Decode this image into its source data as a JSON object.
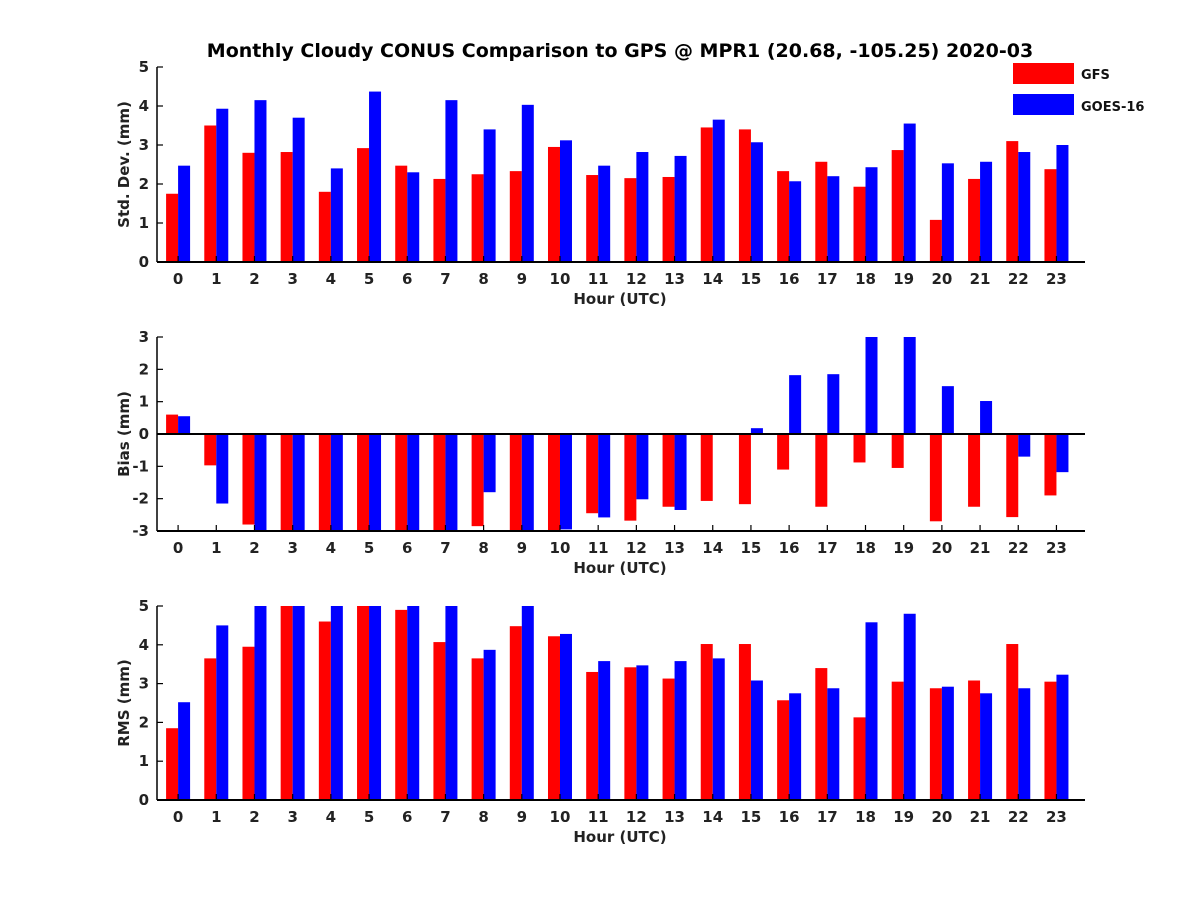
{
  "title": "Monthly Cloudy CONUS Comparison to GPS @ MPR1 (20.68, -105.25) 2020-03",
  "legend": {
    "placement": "top-right",
    "entries": [
      {
        "name": "GFS",
        "color": "#ff0000"
      },
      {
        "name": "GOES-16",
        "color": "#0000ff"
      }
    ]
  },
  "chart_data": [
    {
      "type": "bar",
      "ylabel": "Std. Dev. (mm)",
      "xlabel": "Hour (UTC)",
      "ylim": [
        0,
        5
      ],
      "yticks": [
        0,
        1,
        2,
        3,
        4,
        5
      ],
      "categories": [
        "0",
        "1",
        "2",
        "3",
        "4",
        "5",
        "6",
        "7",
        "8",
        "9",
        "10",
        "11",
        "12",
        "13",
        "14",
        "15",
        "16",
        "17",
        "18",
        "19",
        "20",
        "21",
        "22",
        "23"
      ],
      "series": [
        {
          "name": "GFS",
          "color": "#ff0000",
          "values": [
            1.75,
            3.5,
            2.8,
            2.82,
            1.8,
            2.92,
            2.47,
            2.13,
            2.25,
            2.33,
            2.95,
            2.23,
            2.15,
            2.18,
            3.45,
            3.4,
            2.33,
            2.57,
            1.93,
            2.87,
            1.08,
            2.13,
            3.1,
            2.38
          ]
        },
        {
          "name": "GOES-16",
          "color": "#0000ff",
          "values": [
            2.47,
            3.93,
            4.15,
            3.7,
            2.4,
            4.37,
            2.3,
            4.15,
            3.4,
            4.03,
            3.12,
            2.47,
            2.82,
            2.72,
            3.65,
            3.07,
            2.07,
            2.2,
            2.43,
            3.55,
            2.53,
            2.57,
            2.82,
            3.0
          ]
        }
      ]
    },
    {
      "type": "bar",
      "ylabel": "Bias (mm)",
      "xlabel": "Hour (UTC)",
      "ylim": [
        -3,
        3
      ],
      "yticks": [
        -3,
        -2,
        -1,
        0,
        1,
        2,
        3
      ],
      "categories": [
        "0",
        "1",
        "2",
        "3",
        "4",
        "5",
        "6",
        "7",
        "8",
        "9",
        "10",
        "11",
        "12",
        "13",
        "14",
        "15",
        "16",
        "17",
        "18",
        "19",
        "20",
        "21",
        "22",
        "23"
      ],
      "series": [
        {
          "name": "GFS",
          "color": "#ff0000",
          "values": [
            0.6,
            -0.97,
            -2.8,
            -3.0,
            -3.0,
            -3.0,
            -3.0,
            -3.0,
            -2.85,
            -3.0,
            -3.0,
            -2.45,
            -2.68,
            -2.25,
            -2.07,
            -2.17,
            -1.1,
            -2.25,
            -0.88,
            -1.05,
            -2.7,
            -2.25,
            -2.57,
            -1.9
          ]
        },
        {
          "name": "GOES-16",
          "color": "#0000ff",
          "values": [
            0.55,
            -2.15,
            -3.0,
            -3.0,
            -3.0,
            -3.0,
            -3.0,
            -3.0,
            -1.8,
            -3.0,
            -2.95,
            -2.58,
            -2.02,
            -2.35,
            -0.03,
            0.18,
            1.82,
            1.85,
            3.0,
            3.0,
            1.48,
            1.02,
            -0.7,
            -1.18
          ]
        }
      ]
    },
    {
      "type": "bar",
      "ylabel": "RMS (mm)",
      "xlabel": "Hour (UTC)",
      "ylim": [
        0,
        5
      ],
      "yticks": [
        0,
        1,
        2,
        3,
        4,
        5
      ],
      "categories": [
        "0",
        "1",
        "2",
        "3",
        "4",
        "5",
        "6",
        "7",
        "8",
        "9",
        "10",
        "11",
        "12",
        "13",
        "14",
        "15",
        "16",
        "17",
        "18",
        "19",
        "20",
        "21",
        "22",
        "23"
      ],
      "series": [
        {
          "name": "GFS",
          "color": "#ff0000",
          "values": [
            1.85,
            3.65,
            3.95,
            5.0,
            4.6,
            5.0,
            4.9,
            4.07,
            3.65,
            4.48,
            4.22,
            3.3,
            3.42,
            3.13,
            4.02,
            4.02,
            2.57,
            3.4,
            2.13,
            3.05,
            2.88,
            3.08,
            4.02,
            3.05
          ]
        },
        {
          "name": "GOES-16",
          "color": "#0000ff",
          "values": [
            2.52,
            4.5,
            5.0,
            5.0,
            5.0,
            5.0,
            5.0,
            5.0,
            3.87,
            5.0,
            4.28,
            3.58,
            3.47,
            3.58,
            3.65,
            3.08,
            2.75,
            2.88,
            4.58,
            4.8,
            2.92,
            2.75,
            2.88,
            3.23
          ]
        }
      ]
    }
  ]
}
